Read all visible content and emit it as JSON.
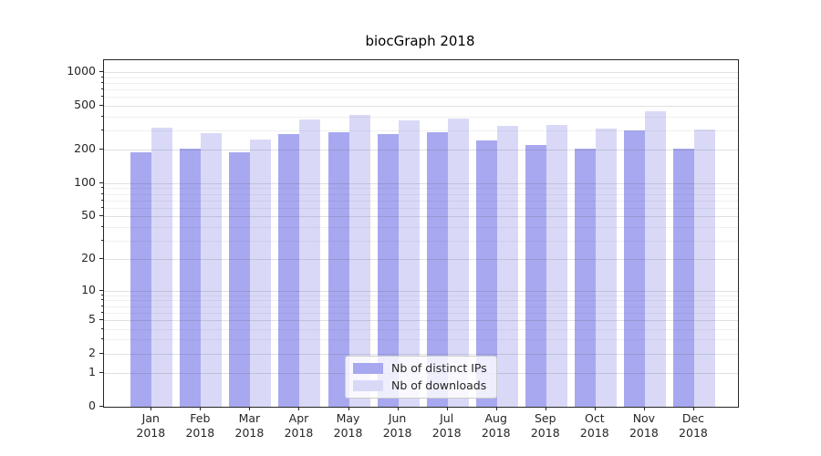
{
  "figure": {
    "title": "biocGraph 2018",
    "background_color": "#ffffff",
    "spine_color": "#262626"
  },
  "chart_data": {
    "type": "bar",
    "title": "biocGraph 2018",
    "categories": [
      "Jan 2018",
      "Feb 2018",
      "Mar 2018",
      "Apr 2018",
      "May 2018",
      "Jun 2018",
      "Jul 2018",
      "Aug 2018",
      "Sep 2018",
      "Oct 2018",
      "Nov 2018",
      "Dec 2018"
    ],
    "series": [
      {
        "name": "Nb of distinct IPs",
        "color": "#a8a8f0",
        "values": [
          190,
          205,
          190,
          280,
          290,
          280,
          290,
          245,
          220,
          205,
          300,
          205
        ]
      },
      {
        "name": "Nb of downloads",
        "color": "#d9d9f7",
        "values": [
          315,
          285,
          250,
          375,
          410,
          370,
          380,
          330,
          335,
          310,
          445,
          305
        ]
      }
    ],
    "xlabel": "",
    "ylabel": "",
    "y_scale": "log1p",
    "ylim": [
      0,
      1280
    ],
    "y_axis_ticks": [
      0,
      1,
      2,
      5,
      10,
      20,
      50,
      100,
      200,
      500,
      1000
    ],
    "y_minor_gridlines": [
      3,
      4,
      6,
      7,
      8,
      9,
      30,
      40,
      60,
      70,
      80,
      90,
      300,
      400,
      600,
      700,
      800,
      900
    ],
    "grid": "on",
    "legend_position": "lower-center"
  }
}
